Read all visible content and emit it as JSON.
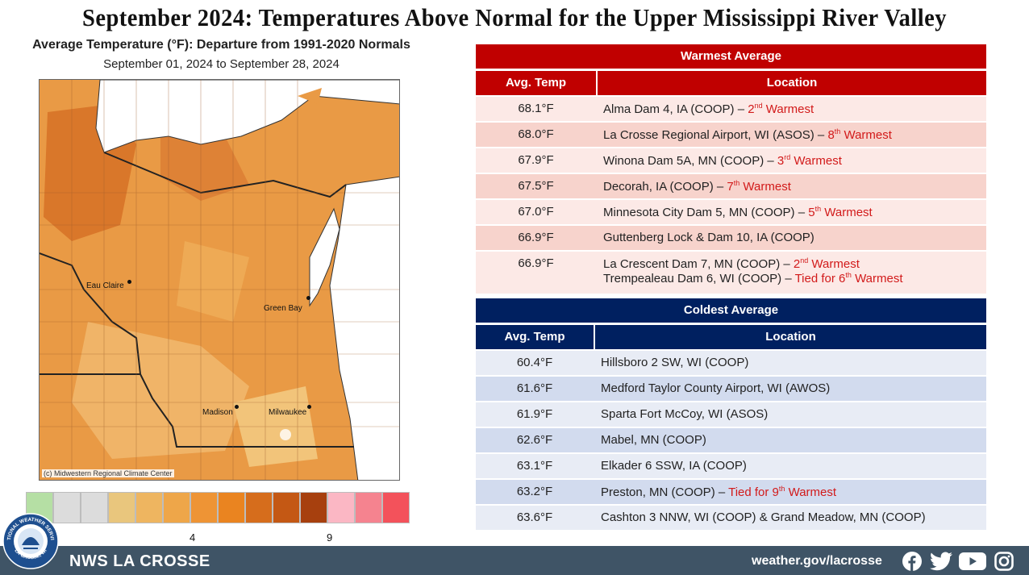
{
  "page_title": "September 2024:  Temperatures Above Normal for the Upper Mississippi River Valley",
  "map": {
    "title": "Average Temperature (°F): Departure from 1991-2020 Normals",
    "subtitle": "September 01, 2024 to September 28, 2024",
    "credit": "(c) Midwestern Regional Climate Center",
    "cities": [
      "Eau Claire",
      "Green Bay",
      "Madison",
      "Milwaukee"
    ]
  },
  "scale": {
    "colors": [
      "#b5dfa4",
      "#dcdcdc",
      "#dcdcdc",
      "#e9c67d",
      "#eeb560",
      "#eea649",
      "#ee9435",
      "#ea8420",
      "#d66d1c",
      "#c45814",
      "#a7400e",
      "#fbb7c4",
      "#f5838f",
      "#f3525b"
    ],
    "tick_labels": [
      "4",
      "9"
    ]
  },
  "warmest": {
    "caption": "Warmest  Average",
    "header_color": "#c00000",
    "columns": [
      "Avg. Temp",
      "Location"
    ],
    "rows": [
      {
        "temp": "68.1°F",
        "lines": [
          {
            "text": "Alma Dam 4, IA (COOP) – ",
            "rank": "2",
            "sup": "nd",
            "note": " Warmest"
          }
        ]
      },
      {
        "temp": "68.0°F",
        "lines": [
          {
            "text": "La Crosse Regional Airport, WI (ASOS) – ",
            "rank": "8",
            "sup": "th",
            "note": " Warmest"
          }
        ]
      },
      {
        "temp": "67.9°F",
        "lines": [
          {
            "text": " Winona Dam 5A, MN (COOP) – ",
            "rank": "3",
            "sup": "rd",
            "note": " Warmest"
          }
        ]
      },
      {
        "temp": "67.5°F",
        "lines": [
          {
            "text": "Decorah, IA (COOP) – ",
            "rank": "7",
            "sup": "th",
            "note": " Warmest"
          }
        ]
      },
      {
        "temp": "67.0°F",
        "lines": [
          {
            "text": "Minnesota City Dam 5, MN (COOP) – ",
            "rank": "5",
            "sup": "th",
            "note": " Warmest"
          }
        ]
      },
      {
        "temp": "66.9°F",
        "lines": [
          {
            "text": "Guttenberg Lock & Dam 10, IA (COOP)",
            "rank": "",
            "sup": "",
            "note": ""
          }
        ]
      },
      {
        "temp": "66.9°F",
        "lines": [
          {
            "text": "La Crescent Dam 7, MN (COOP) – ",
            "rank": "2",
            "sup": "nd",
            "note": " Warmest"
          },
          {
            "text": "Trempealeau Dam 6, WI (COOP) – ",
            "rank": "Tied for 6",
            "sup": "th",
            "note": " Warmest"
          }
        ]
      }
    ]
  },
  "coldest": {
    "caption": "Coldest Average",
    "header_color": "#002060",
    "columns": [
      "Avg. Temp",
      "Location"
    ],
    "rows": [
      {
        "temp": "60.4°F",
        "location": "Hillsboro 2 SW, WI (COOP)",
        "rank": "",
        "sup": "",
        "note": ""
      },
      {
        "temp": "61.6°F",
        "location": "Medford Taylor County Airport, WI (AWOS)",
        "rank": "",
        "sup": "",
        "note": ""
      },
      {
        "temp": "61.9°F",
        "location": "Sparta Fort McCoy, WI (ASOS)",
        "rank": "",
        "sup": "",
        "note": ""
      },
      {
        "temp": "62.6°F",
        "location": "Mabel, MN (COOP)",
        "rank": "",
        "sup": "",
        "note": ""
      },
      {
        "temp": "63.1°F",
        "location": "Elkader 6 SSW, IA (COOP)",
        "rank": "",
        "sup": "",
        "note": ""
      },
      {
        "temp": "63.2°F",
        "location": "Preston, MN (COOP) – ",
        "rank": "Tied for 9",
        "sup": "th",
        "note": " Warmest"
      },
      {
        "temp": "63.6°F",
        "location": "Cashton 3 NNW, WI (COOP) & Grand Meadow, MN (COOP)",
        "rank": "",
        "sup": "",
        "note": ""
      }
    ]
  },
  "footer": {
    "office": "NWS LA CROSSE",
    "url": "weather.gov/lacrosse",
    "logo_text": [
      "NATIONAL WEATHER SERVICE",
      "LA CROSSE, WI"
    ],
    "social_icons": [
      "facebook-icon",
      "twitter-icon",
      "youtube-icon",
      "instagram-icon"
    ]
  }
}
